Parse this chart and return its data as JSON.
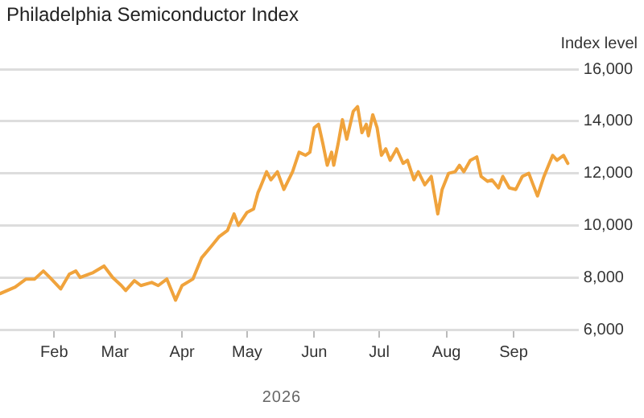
{
  "chart_data": {
    "type": "line",
    "title": "Philadelphia Semiconductor Index",
    "ylabel": "Index level",
    "xlabel": "2026",
    "x": [
      "2026-01-07",
      "2026-01-14",
      "2026-01-19",
      "2026-01-23",
      "2026-01-27",
      "2026-01-30",
      "2026-02-04",
      "2026-02-08",
      "2026-02-11",
      "2026-02-13",
      "2026-02-19",
      "2026-02-24",
      "2026-02-28",
      "2026-03-04",
      "2026-03-06",
      "2026-03-10",
      "2026-03-13",
      "2026-03-18",
      "2026-03-21",
      "2026-03-25",
      "2026-03-29",
      "2026-04-01",
      "2026-04-06",
      "2026-04-10",
      "2026-04-15",
      "2026-04-18",
      "2026-04-22",
      "2026-04-25",
      "2026-04-27",
      "2026-05-01",
      "2026-05-04",
      "2026-05-06",
      "2026-05-07",
      "2026-05-10",
      "2026-05-12",
      "2026-05-15",
      "2026-05-18",
      "2026-05-22",
      "2026-05-25",
      "2026-05-28",
      "2026-05-30",
      "2026-06-01",
      "2026-06-03",
      "2026-06-05",
      "2026-06-07",
      "2026-06-09",
      "2026-06-10",
      "2026-06-12",
      "2026-06-14",
      "2026-06-16",
      "2026-06-19",
      "2026-06-21",
      "2026-06-23",
      "2026-06-25",
      "2026-06-26",
      "2026-06-28",
      "2026-06-30",
      "2026-07-02",
      "2026-07-04",
      "2026-07-06",
      "2026-07-09",
      "2026-07-12",
      "2026-07-14",
      "2026-07-17",
      "2026-07-19",
      "2026-07-22",
      "2026-07-25",
      "2026-07-28",
      "2026-07-30",
      "2026-08-02",
      "2026-08-05",
      "2026-08-07",
      "2026-08-09",
      "2026-08-12",
      "2026-08-15",
      "2026-08-17",
      "2026-08-20",
      "2026-08-22",
      "2026-08-25",
      "2026-08-27",
      "2026-08-30",
      "2026-09-02",
      "2026-09-05",
      "2026-09-08",
      "2026-09-10",
      "2026-09-12",
      "2026-09-15",
      "2026-09-19",
      "2026-09-21",
      "2026-09-24",
      "2026-09-26"
    ],
    "series": [
      {
        "color": "#f0a33c",
        "values": [
          7380,
          7630,
          7940,
          7940,
          8250,
          8000,
          7560,
          8130,
          8250,
          8000,
          8190,
          8440,
          8000,
          7690,
          7500,
          7880,
          7690,
          7810,
          7690,
          7940,
          7130,
          7690,
          7940,
          8750,
          9250,
          9560,
          9810,
          10440,
          10000,
          10500,
          10630,
          11250,
          11440,
          12060,
          11750,
          12060,
          11380,
          12060,
          12810,
          12690,
          12810,
          13750,
          13880,
          13130,
          12310,
          12810,
          12310,
          13130,
          14060,
          13310,
          14380,
          14560,
          13560,
          13880,
          13440,
          14250,
          13750,
          12690,
          12940,
          12500,
          12940,
          12380,
          12500,
          11750,
          12060,
          11560,
          11880,
          10440,
          11380,
          12000,
          12060,
          12310,
          12060,
          12500,
          12630,
          11880,
          11690,
          11750,
          11440,
          11880,
          11440,
          11380,
          11880,
          12000,
          11560,
          11130,
          11880,
          12690,
          12500,
          12690,
          12380
        ]
      }
    ],
    "xlim": [
      "2026-01-07",
      "2026-10-01"
    ],
    "xticks": [
      {
        "value": "2026-02-01",
        "label": "Feb"
      },
      {
        "value": "2026-03-01",
        "label": "Mar"
      },
      {
        "value": "2026-04-01",
        "label": "Apr"
      },
      {
        "value": "2026-05-01",
        "label": "May"
      },
      {
        "value": "2026-06-01",
        "label": "Jun"
      },
      {
        "value": "2026-07-01",
        "label": "Jul"
      },
      {
        "value": "2026-08-01",
        "label": "Aug"
      },
      {
        "value": "2026-09-01",
        "label": "Sep"
      }
    ],
    "ylim": [
      6000,
      16000
    ],
    "yticks": [
      {
        "value": 6000,
        "label": "6,000"
      },
      {
        "value": 8000,
        "label": "8,000"
      },
      {
        "value": 10000,
        "label": "10,000"
      },
      {
        "value": 12000,
        "label": "12,000"
      },
      {
        "value": 14000,
        "label": "14,000"
      },
      {
        "value": 16000,
        "label": "16,000"
      }
    ],
    "grid": "y",
    "legend": false,
    "marker": "none",
    "line_style": "solid"
  }
}
